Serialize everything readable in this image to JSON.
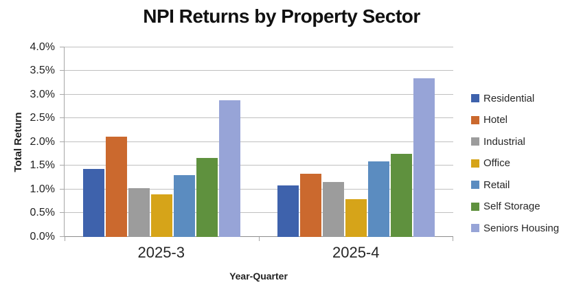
{
  "title": "NPI Returns by Property Sector",
  "chart_data": {
    "type": "bar",
    "title": "NPI Returns by Property Sector",
    "xlabel": "Year-Quarter",
    "ylabel": "Total Return",
    "categories": [
      "2025-3",
      "2025-4"
    ],
    "series": [
      {
        "name": "Residential",
        "color": "#3E62AC",
        "values": [
          1.44,
          1.09
        ]
      },
      {
        "name": "Hotel",
        "color": "#CB692E",
        "values": [
          2.12,
          1.33
        ]
      },
      {
        "name": "Industrial",
        "color": "#9C9C9C",
        "values": [
          1.03,
          1.16
        ]
      },
      {
        "name": "Office",
        "color": "#D6A419",
        "values": [
          0.9,
          0.8
        ]
      },
      {
        "name": "Retail",
        "color": "#5B8CC0",
        "values": [
          1.31,
          1.6
        ]
      },
      {
        "name": "Self Storage",
        "color": "#5F913E",
        "values": [
          1.67,
          1.76
        ]
      },
      {
        "name": "Seniors Housing",
        "color": "#97A4D7",
        "values": [
          2.88,
          3.35
        ]
      }
    ],
    "y_axis": {
      "min": 0,
      "max": 4.0,
      "step": 0.5,
      "tick_labels": [
        "0.0%",
        "0.5%",
        "1.0%",
        "1.5%",
        "2.0%",
        "2.5%",
        "3.0%",
        "3.5%",
        "4.0%"
      ]
    },
    "legend_position": "right",
    "grid": true
  },
  "colors": {
    "background": "#FFFFFF",
    "gridline": "#BFBFBF",
    "axis": "#A6A6A6",
    "title_text": "#111111",
    "label_text": "#262626"
  }
}
